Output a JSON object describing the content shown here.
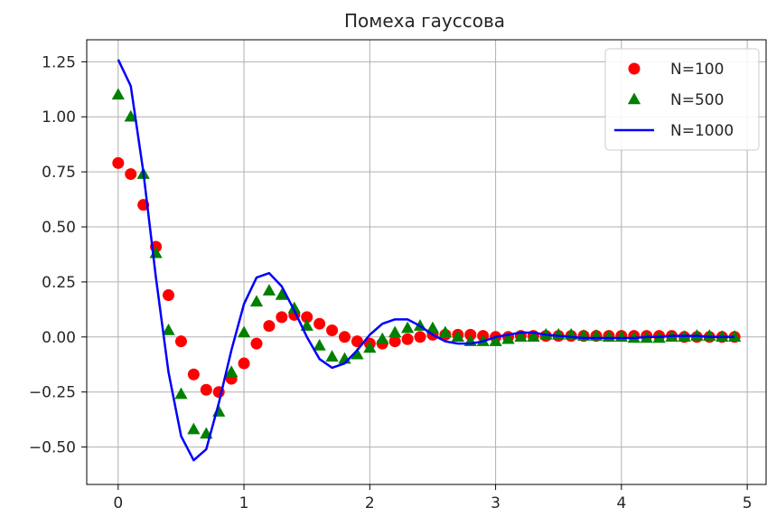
{
  "chart_data": {
    "type": "scatter",
    "title": "Помеха гауссова",
    "xlabel": "",
    "ylabel": "",
    "xlim": [
      -0.25,
      5.15
    ],
    "ylim": [
      -0.67,
      1.35
    ],
    "xticks": [
      0,
      1,
      2,
      3,
      4,
      5
    ],
    "xtick_labels": [
      "0",
      "1",
      "2",
      "3",
      "4",
      "5"
    ],
    "yticks": [
      -0.5,
      -0.25,
      0.0,
      0.25,
      0.5,
      0.75,
      1.0,
      1.25
    ],
    "ytick_labels": [
      "−0.50",
      "−0.25",
      "0.00",
      "0.25",
      "0.50",
      "0.75",
      "1.00",
      "1.25"
    ],
    "grid": true,
    "legend_position": "top-right",
    "x": [
      0.0,
      0.1,
      0.2,
      0.3,
      0.4,
      0.5,
      0.6,
      0.7,
      0.8,
      0.9,
      1.0,
      1.1,
      1.2,
      1.3,
      1.4,
      1.5,
      1.6,
      1.7,
      1.8,
      1.9,
      2.0,
      2.1,
      2.2,
      2.3,
      2.4,
      2.5,
      2.6,
      2.7,
      2.8,
      2.9,
      3.0,
      3.1,
      3.2,
      3.3,
      3.4,
      3.5,
      3.6,
      3.7,
      3.8,
      3.9,
      4.0,
      4.1,
      4.2,
      4.3,
      4.4,
      4.5,
      4.6,
      4.7,
      4.8,
      4.9
    ],
    "series": [
      {
        "name": "N=100",
        "style": "circle",
        "color": "#ff0000",
        "values": [
          0.79,
          0.74,
          0.6,
          0.41,
          0.19,
          -0.02,
          -0.17,
          -0.24,
          -0.25,
          -0.19,
          -0.12,
          -0.03,
          0.05,
          0.09,
          0.1,
          0.09,
          0.06,
          0.03,
          0.0,
          -0.02,
          -0.03,
          -0.03,
          -0.02,
          -0.01,
          0.0,
          0.01,
          0.01,
          0.01,
          0.01,
          0.005,
          0.0,
          0.0,
          0.005,
          0.005,
          0.005,
          0.005,
          0.005,
          0.005,
          0.005,
          0.005,
          0.005,
          0.005,
          0.005,
          0.005,
          0.005,
          0.0,
          0.0,
          0.0,
          0.0,
          0.0
        ]
      },
      {
        "name": "N=500",
        "style": "triangle",
        "color": "#008000",
        "values": [
          1.1,
          1.0,
          0.74,
          0.38,
          0.03,
          -0.26,
          -0.42,
          -0.44,
          -0.34,
          -0.16,
          0.02,
          0.16,
          0.21,
          0.19,
          0.13,
          0.05,
          -0.04,
          -0.09,
          -0.1,
          -0.08,
          -0.05,
          -0.01,
          0.02,
          0.04,
          0.05,
          0.04,
          0.02,
          0.0,
          -0.02,
          -0.02,
          -0.02,
          -0.01,
          0.0,
          0.0,
          0.01,
          0.01,
          0.01,
          0.005,
          0.005,
          0.0,
          0.0,
          -0.005,
          -0.005,
          -0.005,
          0.0,
          0.0,
          0.005,
          0.005,
          0.0,
          0.0
        ]
      },
      {
        "name": "N=1000",
        "style": "line",
        "color": "#0000ff",
        "values": [
          1.26,
          1.14,
          0.75,
          0.27,
          -0.16,
          -0.45,
          -0.56,
          -0.51,
          -0.3,
          -0.06,
          0.15,
          0.27,
          0.29,
          0.23,
          0.12,
          0.0,
          -0.1,
          -0.14,
          -0.12,
          -0.06,
          0.01,
          0.06,
          0.08,
          0.08,
          0.05,
          0.01,
          -0.02,
          -0.03,
          -0.03,
          -0.02,
          0.0,
          0.01,
          0.02,
          0.02,
          0.01,
          0.005,
          0.0,
          -0.005,
          -0.005,
          -0.005,
          -0.005,
          -0.005,
          0.0,
          0.0,
          0.005,
          0.005,
          0.005,
          0.0,
          0.0,
          0.0
        ]
      }
    ]
  }
}
